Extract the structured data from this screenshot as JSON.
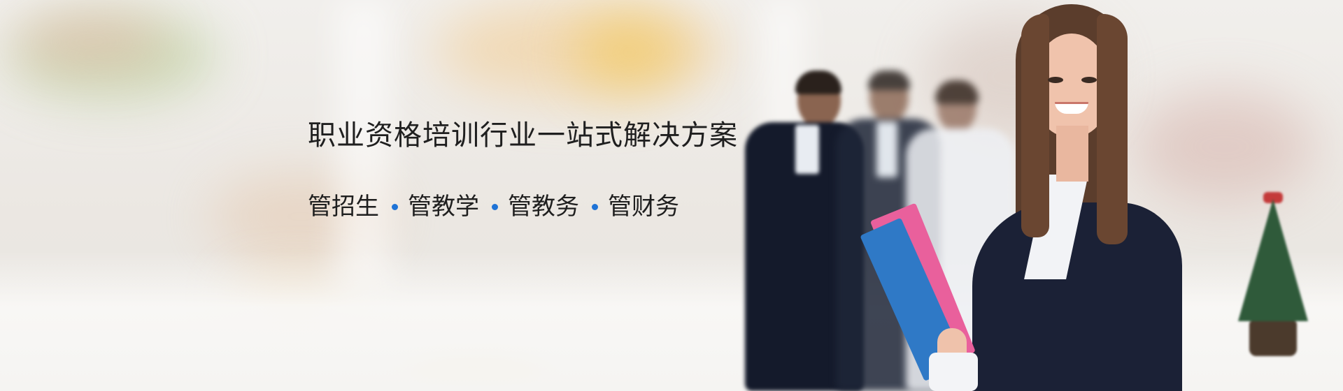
{
  "banner": {
    "headline": "职业资格培训行业一站式解决方案",
    "features": [
      "管招生",
      "管教学",
      "管教务",
      "管财务"
    ],
    "bullet_color": "#1e73d6",
    "text_color": "#1f1f1f"
  }
}
